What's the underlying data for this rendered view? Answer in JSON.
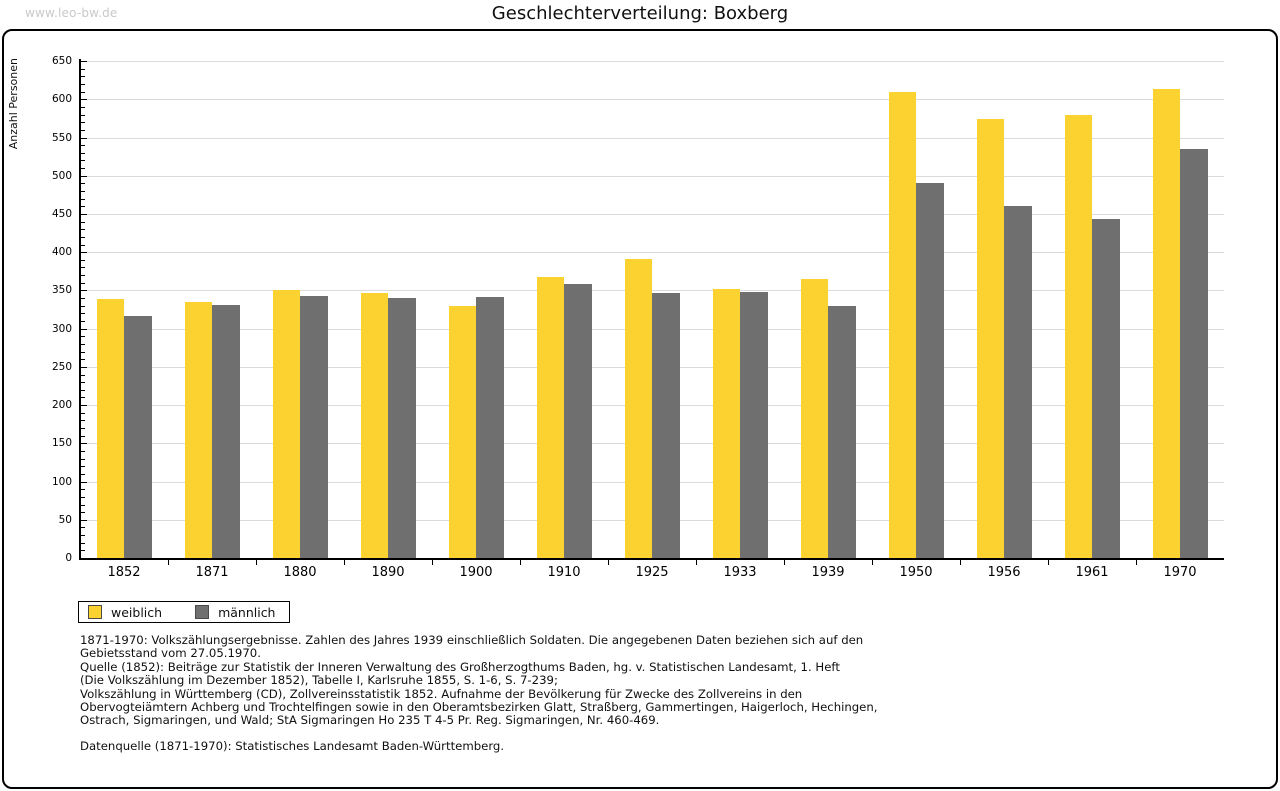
{
  "page": {
    "watermark": "www.leo-bw.de",
    "title": "Geschlechterverteilung: Boxberg"
  },
  "colors": {
    "female_bar": "#FCD231",
    "male_bar": "#6F6F6F",
    "gridline": "#DBDBDB",
    "axis": "#000000",
    "watermark": "#C9C9C9"
  },
  "chart_data": {
    "type": "bar",
    "title": "Geschlechterverteilung: Boxberg",
    "xlabel": "",
    "ylabel": "Anzahl Personen",
    "ylim": [
      0,
      650
    ],
    "yticks": [
      0,
      50,
      100,
      150,
      200,
      250,
      300,
      350,
      400,
      450,
      500,
      550,
      600,
      650
    ],
    "minor_tick_step": 10,
    "grid": true,
    "legend_position": "bottom-left",
    "categories": [
      "1852",
      "1871",
      "1880",
      "1890",
      "1900",
      "1910",
      "1925",
      "1933",
      "1939",
      "1950",
      "1956",
      "1961",
      "1970"
    ],
    "series": [
      {
        "name": "weiblich",
        "color": "#FCD231",
        "values": [
          339,
          335,
          350,
          347,
          329,
          367,
          391,
          352,
          365,
          610,
          574,
          579,
          614
        ]
      },
      {
        "name": "männlich",
        "color": "#6F6F6F",
        "values": [
          316,
          331,
          343,
          340,
          341,
          359,
          346,
          348,
          330,
          491,
          461,
          443,
          535
        ]
      }
    ]
  },
  "footnotes": {
    "block1_lines": [
      "1871-1970: Volkszählungsergebnisse. Zahlen des Jahres 1939 einschließlich Soldaten. Die angegebenen Daten beziehen sich auf den",
      "Gebietsstand vom 27.05.1970.",
      "Quelle (1852): Beiträge zur Statistik der Inneren Verwaltung des Großherzogthums Baden, hg. v. Statistischen Landesamt, 1. Heft",
      "(Die Volkszählung im Dezember 1852), Tabelle I, Karlsruhe 1855, S. 1-6, S. 7-239;",
      "Volkszählung in Württemberg (CD), Zollvereinsstatistik 1852. Aufnahme der Bevölkerung für Zwecke des Zollvereins in den",
      "Obervogteiämtern Achberg und Trochtelfingen sowie in den Oberamtsbezirken Glatt, Straßberg, Gammertingen, Haigerloch, Hechingen,",
      "Ostrach, Sigmaringen, und Wald; StA Sigmaringen Ho 235 T 4-5 Pr. Reg. Sigmaringen, Nr. 460-469."
    ],
    "datenquelle": "Datenquelle (1871-1970): Statistisches Landesamt Baden-Württemberg."
  }
}
